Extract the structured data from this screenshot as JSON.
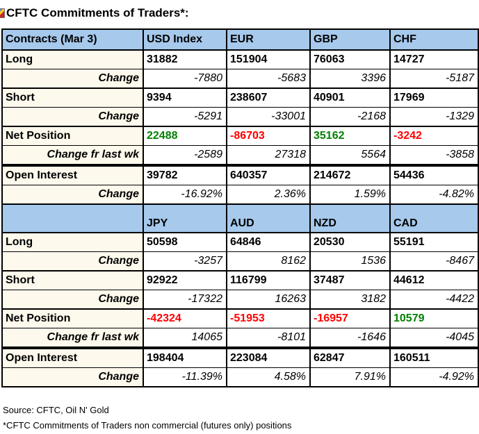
{
  "title": "CFTC Commitments of Traders*:",
  "icons": {
    "title_marker": "clipped-image-icon"
  },
  "colors": {
    "header_bg": "#A6C9EC",
    "label_bg": "#FDF9EC",
    "positive": "#008000",
    "negative": "#FF0000",
    "border": "#000000"
  },
  "footer": {
    "source": "Source: CFTC, Oil N' Gold",
    "note": "*CFTC Commitments of Traders non commercial (futures only) positions"
  },
  "chart_data": {
    "type": "table",
    "title": "CFTC Commitments of Traders*:",
    "sections": [
      {
        "corner_label": "Contracts (Mar 3)",
        "columns": [
          "USD Index",
          "EUR",
          "GBP",
          "CHF"
        ],
        "rows": [
          {
            "label": "Long",
            "type": "metric",
            "values": [
              "31882",
              "151904",
              "76063",
              "14727"
            ]
          },
          {
            "label": "Change",
            "type": "change",
            "values": [
              "-7880",
              "-5683",
              "3396",
              "-5187"
            ]
          },
          {
            "label": "Short",
            "type": "metric",
            "values": [
              "9394",
              "238607",
              "40901",
              "17969"
            ]
          },
          {
            "label": "Change",
            "type": "change",
            "values": [
              "-5291",
              "-33001",
              "-2168",
              "-1329"
            ]
          },
          {
            "label": "Net Position",
            "type": "net",
            "values": [
              "22488",
              "-86703",
              "35162",
              "-3242"
            ]
          },
          {
            "label": "Change fr last wk",
            "type": "change",
            "values": [
              "-2589",
              "27318",
              "5564",
              "-3858"
            ]
          },
          {
            "label": "Open Interest",
            "type": "metric",
            "gap_before": true,
            "values": [
              "39782",
              "640357",
              "214672",
              "54436"
            ]
          },
          {
            "label": "Change",
            "type": "change",
            "values": [
              "-16.92%",
              "2.36%",
              "1.59%",
              "-4.82%"
            ]
          }
        ]
      },
      {
        "corner_label": "",
        "columns": [
          "JPY",
          "AUD",
          "NZD",
          "CAD"
        ],
        "rows": [
          {
            "label": "Long",
            "type": "metric",
            "values": [
              "50598",
              "64846",
              "20530",
              "55191"
            ]
          },
          {
            "label": "Change",
            "type": "change",
            "values": [
              "-3257",
              "8162",
              "1536",
              "-8467"
            ]
          },
          {
            "label": "Short",
            "type": "metric",
            "values": [
              "92922",
              "116799",
              "37487",
              "44612"
            ]
          },
          {
            "label": "Change",
            "type": "change",
            "values": [
              "-17322",
              "16263",
              "3182",
              "-4422"
            ]
          },
          {
            "label": "Net Position",
            "type": "net",
            "values": [
              "-42324",
              "-51953",
              "-16957",
              "10579"
            ]
          },
          {
            "label": "Change fr last wk",
            "type": "change",
            "values": [
              "14065",
              "-8101",
              "-1646",
              "-4045"
            ]
          },
          {
            "label": "Open Interest",
            "type": "metric",
            "gap_before": true,
            "values": [
              "198404",
              "223084",
              "62847",
              "160511"
            ]
          },
          {
            "label": "Change",
            "type": "change",
            "values": [
              "-11.39%",
              "4.58%",
              "7.91%",
              "-4.92%"
            ]
          }
        ]
      }
    ]
  }
}
